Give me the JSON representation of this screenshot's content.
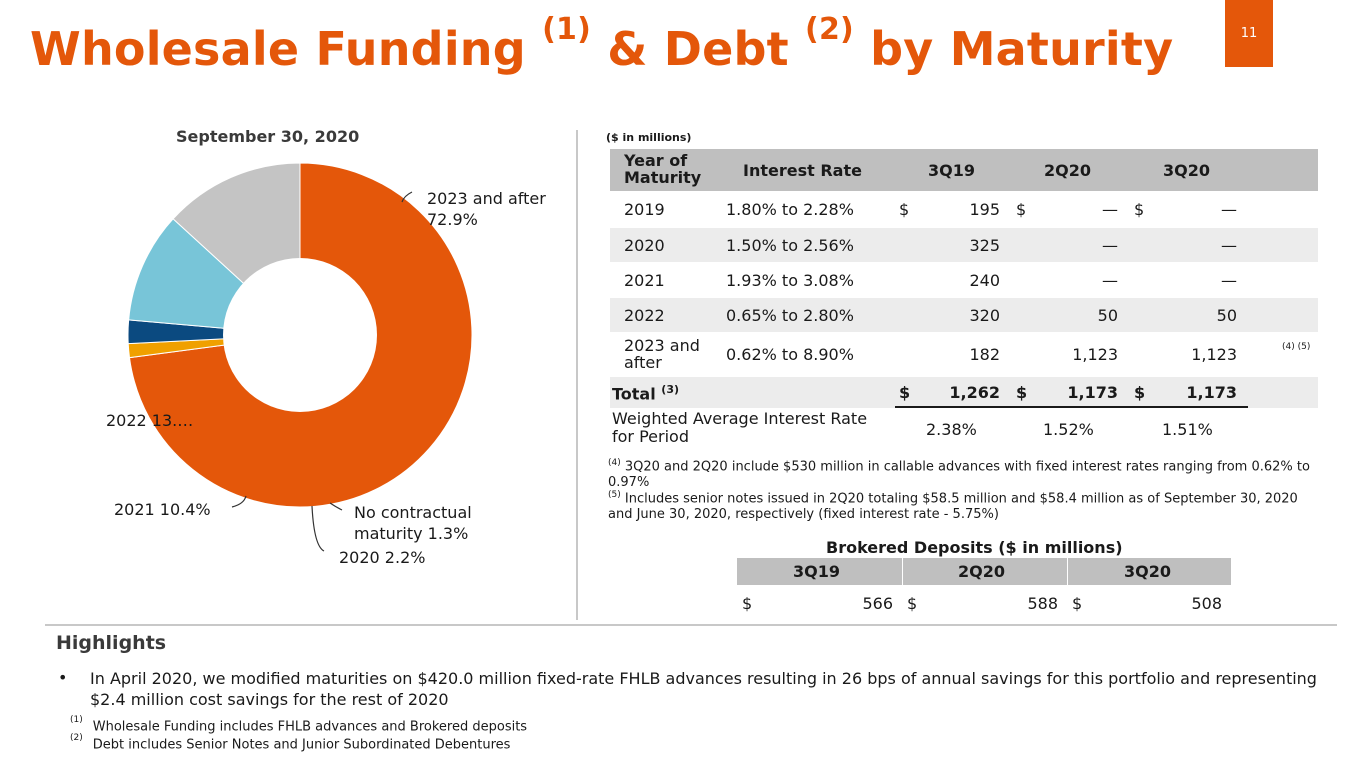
{
  "title": {
    "part1": "Wholesale Funding ",
    "sup1": "(1)",
    "part2": " & Debt ",
    "sup2": "(2)",
    "part3": " by Maturity"
  },
  "page_number": "11",
  "chart_data": {
    "type": "pie",
    "title": "September 30, 2020",
    "slices": [
      {
        "label": "2023 and after",
        "value": 72.9,
        "display": "2023 and after 72.9%",
        "color": "#e4570a"
      },
      {
        "label": "No contractual maturity",
        "value": 1.3,
        "display": "No contractual maturity 1.3%",
        "color": "#f0a000"
      },
      {
        "label": "2020",
        "value": 2.2,
        "display": "2020 2.2%",
        "color": "#0b4a80"
      },
      {
        "label": "2021",
        "value": 10.4,
        "display": "2021 10.4%",
        "color": "#78c5d8"
      },
      {
        "label": "2022",
        "value": 13.2,
        "display": "2022 13.…",
        "color": "#c4c4c4"
      }
    ]
  },
  "pie_labels": {
    "l2023a": "2023 and after",
    "l2023b": "72.9%",
    "l2022": "2022 13.…",
    "l2021": "2021 10.4%",
    "lnocontract_a": "No contractual",
    "lnocontract_b": "maturity 1.3%",
    "l2020": "2020 2.2%"
  },
  "funding_table": {
    "units": "($ in millions)",
    "headers": {
      "year_a": "Year of",
      "year_b": "Maturity",
      "rate": "Interest Rate",
      "c1": "3Q19",
      "c2": "2Q20",
      "c3": "3Q20"
    },
    "rows": [
      {
        "year": "2019",
        "rate": "1.80% to 2.28%",
        "d1": "$",
        "v1": "195",
        "d2": "$",
        "v2": "—",
        "d3": "$",
        "v3": "—"
      },
      {
        "year": "2020",
        "rate": "1.50% to 2.56%",
        "v1": "325",
        "v2": "—",
        "v3": "—"
      },
      {
        "year": "2021",
        "rate": "1.93% to 3.08%",
        "v1": "240",
        "v2": "—",
        "v3": "—"
      },
      {
        "year": "2022",
        "rate": "0.65% to 2.80%",
        "v1": "320",
        "v2": "50",
        "v3": "50"
      },
      {
        "year_a": "2023 and",
        "year_b": "after",
        "rate": "0.62% to 8.90%",
        "v1": "182",
        "v2": "1,123",
        "v3": "1,123",
        "note": "(4) (5)"
      }
    ],
    "total": {
      "label": "Total",
      "sup": "(3)",
      "d1": "$",
      "v1": "1,262",
      "d2": "$",
      "v2": "1,173",
      "d3": "$",
      "v3": "1,173"
    },
    "weighted": {
      "label_a": "Weighted Average Interest Rate",
      "label_b": "for Period",
      "v1": "2.38%",
      "v2": "1.52%",
      "v3": "1.51%"
    },
    "note4": {
      "mark": "(4)",
      "text": " 3Q20 and 2Q20 include $530 million in callable advances with fixed interest rates ranging from 0.62% to 0.97%"
    },
    "note5": {
      "mark": "(5)",
      "text": " Includes senior notes issued in 2Q20 totaling $58.5 million and $58.4 million as of September 30, 2020 and June 30, 2020, respectively (fixed interest rate - 5.75%)"
    }
  },
  "brokered": {
    "title": "Brokered Deposits ($ in millions)",
    "headers": [
      "3Q19",
      "2Q20",
      "3Q20"
    ],
    "dollar": "$",
    "values": [
      "566",
      "588",
      "508"
    ]
  },
  "highlights": {
    "title": "Highlights",
    "bullet": "•",
    "text": "In April 2020, we modified maturities on $420.0 million fixed-rate FHLB advances resulting in 26 bps of annual savings for this portfolio and representing $2.4 million cost savings for the rest of 2020"
  },
  "footnotes": [
    {
      "mark": "(1)",
      "text": "Wholesale Funding includes FHLB advances and Brokered deposits"
    },
    {
      "mark": "(2)",
      "text": "Debt includes Senior Notes and Junior Subordinated Debentures"
    }
  ]
}
